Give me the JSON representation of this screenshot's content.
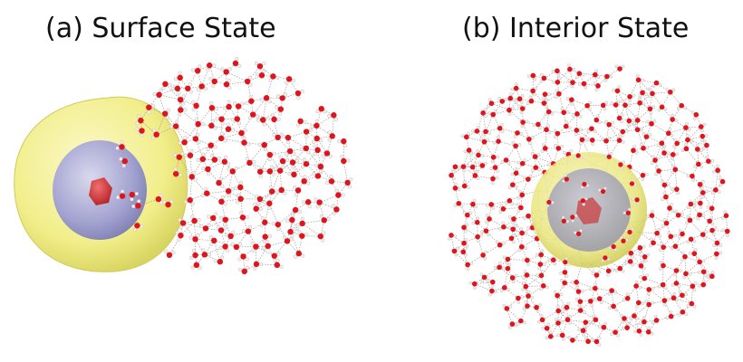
{
  "panels": {
    "a": {
      "title": "(a) Surface State"
    },
    "b": {
      "title": "(b) Interior State"
    }
  },
  "colors": {
    "oxygen": "#e0141c",
    "hydrogen": "#f2f2f2",
    "bond": "#9a9a9a",
    "outer_shell": "#f3f08a",
    "middle_shell": "#a5a5d6",
    "core": "#d9383c"
  }
}
